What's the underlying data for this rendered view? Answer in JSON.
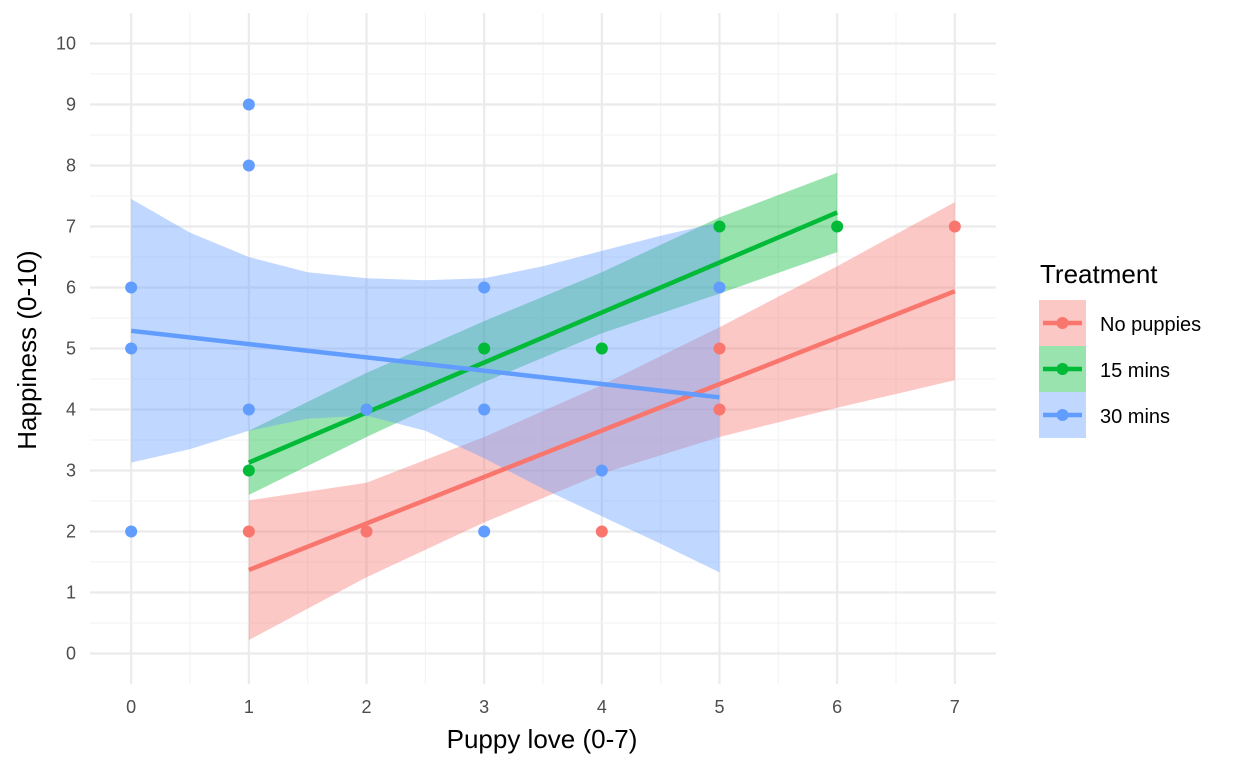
{
  "chart_data": {
    "type": "scatter",
    "xlabel": "Puppy love (0-7)",
    "ylabel": "Happiness (0-10)",
    "xlim": [
      -0.35,
      7.35
    ],
    "ylim": [
      -0.5,
      10.5
    ],
    "x_ticks": [
      0,
      1,
      2,
      3,
      4,
      5,
      6,
      7
    ],
    "y_ticks": [
      0,
      1,
      2,
      3,
      4,
      5,
      6,
      7,
      8,
      9,
      10
    ],
    "grid": true,
    "legend": {
      "title": "Treatment",
      "position": "right"
    },
    "series": [
      {
        "name": "No puppies",
        "color": "#F8766D",
        "points": [
          [
            1,
            2
          ],
          [
            2,
            2
          ],
          [
            4,
            2
          ],
          [
            5,
            5
          ],
          [
            5,
            4
          ],
          [
            7,
            7
          ]
        ],
        "fit": {
          "x": [
            1,
            7
          ],
          "y": [
            1.37,
            5.94
          ]
        },
        "band": {
          "x": [
            1,
            2,
            3,
            4,
            5,
            6,
            7
          ],
          "lower": [
            0.22,
            1.25,
            2.15,
            2.95,
            3.55,
            4.03,
            4.48
          ],
          "upper": [
            2.51,
            2.8,
            3.55,
            4.4,
            5.35,
            6.35,
            7.4
          ]
        }
      },
      {
        "name": "15 mins",
        "color": "#00BA38",
        "points": [
          [
            1,
            3
          ],
          [
            3,
            5
          ],
          [
            4,
            5
          ],
          [
            5,
            7
          ],
          [
            6,
            7
          ]
        ],
        "fit": {
          "x": [
            1,
            6
          ],
          "y": [
            3.13,
            7.23
          ]
        },
        "band": {
          "x": [
            1,
            2,
            3,
            4,
            5,
            6
          ],
          "lower": [
            2.6,
            3.55,
            4.45,
            5.25,
            5.9,
            6.58
          ],
          "upper": [
            3.65,
            4.6,
            5.45,
            6.25,
            7.15,
            7.88
          ]
        }
      },
      {
        "name": "30 mins",
        "color": "#619CFF",
        "points": [
          [
            0,
            6
          ],
          [
            0,
            5
          ],
          [
            0,
            2
          ],
          [
            1,
            9
          ],
          [
            1,
            8
          ],
          [
            1,
            4
          ],
          [
            2,
            4
          ],
          [
            3,
            6
          ],
          [
            3,
            4
          ],
          [
            3,
            2
          ],
          [
            4,
            3
          ],
          [
            5,
            6
          ]
        ],
        "fit": {
          "x": [
            0,
            5
          ],
          "y": [
            5.29,
            4.2
          ]
        },
        "band": {
          "x": [
            0,
            0.5,
            1,
            1.5,
            2,
            2.5,
            3,
            3.5,
            4,
            4.5,
            5
          ],
          "lower": [
            3.13,
            3.35,
            3.65,
            3.85,
            3.9,
            3.65,
            3.2,
            2.7,
            2.25,
            1.8,
            1.33
          ],
          "upper": [
            7.45,
            6.9,
            6.5,
            6.25,
            6.15,
            6.12,
            6.15,
            6.35,
            6.6,
            6.85,
            7.07
          ]
        }
      }
    ]
  }
}
